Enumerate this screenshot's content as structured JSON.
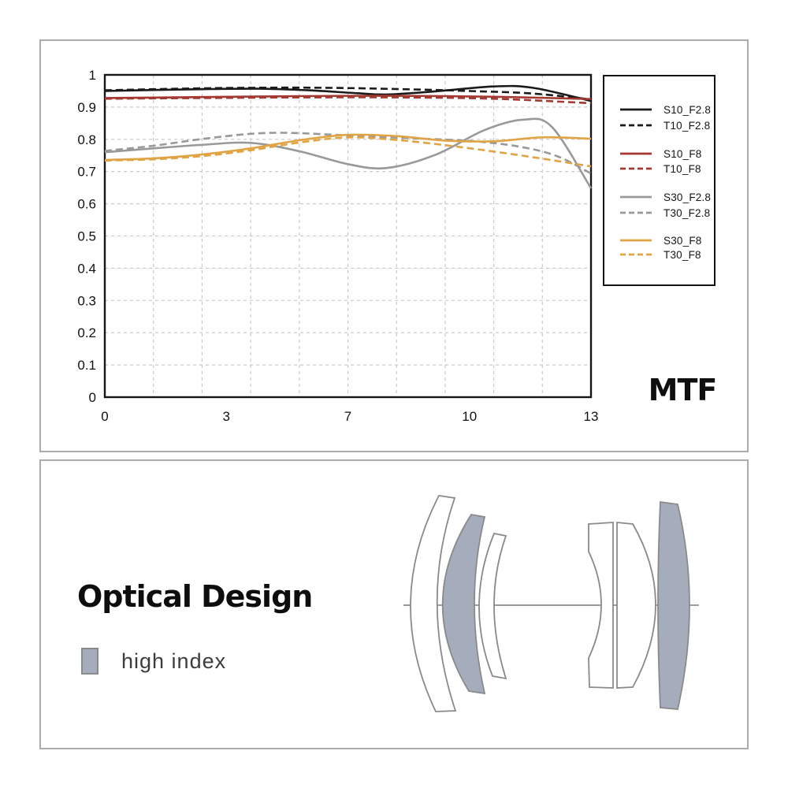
{
  "mtf_panel": {
    "mtf_label": "MTF"
  },
  "optical_panel": {
    "title": "Optical Design",
    "high_index_label": "high index"
  },
  "colors": {
    "series_black": "#1a1a1a",
    "series_red": "#a43932",
    "series_gray": "#999999",
    "series_orange": "#e0a444",
    "high_index_fill": "#a5adbd",
    "lens_outline": "#8a8a8a",
    "panel_border": "#ababab",
    "grid": "#c9c9c9",
    "frame": "#161616"
  },
  "chart_data": {
    "type": "line",
    "title": "MTF",
    "xlabel": "",
    "ylabel": "",
    "ylim": [
      0,
      1
    ],
    "grid": "dashed light-gray; vertical lines every 10% of plot width, horizontal lines every 0.1",
    "legend_position": "outside right, boxed, 4 pairs",
    "x_ticks": [
      {
        "label": "0",
        "f": 0
      },
      {
        "label": "3",
        "f": 0.25
      },
      {
        "label": "7",
        "f": 0.5
      },
      {
        "label": "10",
        "f": 0.75
      },
      {
        "label": "13",
        "f": 1
      }
    ],
    "y_ticks": [
      {
        "label": "0",
        "v": 0
      },
      {
        "label": "0.1",
        "v": 0.1
      },
      {
        "label": "0.2",
        "v": 0.2
      },
      {
        "label": "0.3",
        "v": 0.3
      },
      {
        "label": "0.4",
        "v": 0.4
      },
      {
        "label": "0.5",
        "v": 0.5
      },
      {
        "label": "0.6",
        "v": 0.6
      },
      {
        "label": "0.7",
        "v": 0.7
      },
      {
        "label": "0.8",
        "v": 0.8
      },
      {
        "label": "0.9",
        "v": 0.9
      },
      {
        "label": "1",
        "v": 1
      }
    ],
    "series": [
      {
        "name": "S10_F2.8",
        "color": "#1a1a1a",
        "dash": false,
        "points": [
          [
            0,
            0.95
          ],
          [
            0.1,
            0.953
          ],
          [
            0.22,
            0.956
          ],
          [
            0.32,
            0.957
          ],
          [
            0.42,
            0.952
          ],
          [
            0.52,
            0.943
          ],
          [
            0.58,
            0.939
          ],
          [
            0.68,
            0.949
          ],
          [
            0.8,
            0.964
          ],
          [
            0.88,
            0.96
          ],
          [
            1,
            0.919
          ]
        ]
      },
      {
        "name": "T10_F2.8",
        "color": "#1a1a1a",
        "dash": true,
        "points": [
          [
            0,
            0.952
          ],
          [
            0.15,
            0.957
          ],
          [
            0.3,
            0.96
          ],
          [
            0.45,
            0.96
          ],
          [
            0.6,
            0.956
          ],
          [
            0.75,
            0.95
          ],
          [
            0.88,
            0.942
          ],
          [
            1,
            0.924
          ]
        ]
      },
      {
        "name": "S10_F8",
        "color": "#a43932",
        "dash": false,
        "points": [
          [
            0,
            0.928
          ],
          [
            0.2,
            0.931
          ],
          [
            0.4,
            0.934
          ],
          [
            0.6,
            0.935
          ],
          [
            0.8,
            0.932
          ],
          [
            1,
            0.925
          ]
        ]
      },
      {
        "name": "T10_F8",
        "color": "#a43932",
        "dash": true,
        "points": [
          [
            0,
            0.926
          ],
          [
            0.2,
            0.928
          ],
          [
            0.4,
            0.93
          ],
          [
            0.6,
            0.93
          ],
          [
            0.8,
            0.926
          ],
          [
            1,
            0.912
          ]
        ]
      },
      {
        "name": "S30_F2.8",
        "color": "#999999",
        "dash": false,
        "points": [
          [
            0,
            0.76
          ],
          [
            0.1,
            0.772
          ],
          [
            0.2,
            0.783
          ],
          [
            0.3,
            0.789
          ],
          [
            0.4,
            0.763
          ],
          [
            0.5,
            0.723
          ],
          [
            0.58,
            0.711
          ],
          [
            0.68,
            0.752
          ],
          [
            0.78,
            0.828
          ],
          [
            0.86,
            0.861
          ],
          [
            0.92,
            0.838
          ],
          [
            1,
            0.648
          ]
        ]
      },
      {
        "name": "T30_F2.8",
        "color": "#999999",
        "dash": true,
        "points": [
          [
            0,
            0.764
          ],
          [
            0.1,
            0.78
          ],
          [
            0.2,
            0.801
          ],
          [
            0.3,
            0.817
          ],
          [
            0.38,
            0.82
          ],
          [
            0.5,
            0.812
          ],
          [
            0.62,
            0.804
          ],
          [
            0.75,
            0.795
          ],
          [
            0.85,
            0.778
          ],
          [
            0.93,
            0.748
          ],
          [
            1,
            0.694
          ]
        ]
      },
      {
        "name": "S30_F8",
        "color": "#e0a444",
        "dash": false,
        "points": [
          [
            0,
            0.736
          ],
          [
            0.1,
            0.741
          ],
          [
            0.2,
            0.753
          ],
          [
            0.3,
            0.772
          ],
          [
            0.4,
            0.797
          ],
          [
            0.5,
            0.814
          ],
          [
            0.6,
            0.81
          ],
          [
            0.7,
            0.796
          ],
          [
            0.8,
            0.794
          ],
          [
            0.9,
            0.806
          ],
          [
            1,
            0.802
          ]
        ]
      },
      {
        "name": "T30_F8",
        "color": "#e0a444",
        "dash": true,
        "points": [
          [
            0,
            0.734
          ],
          [
            0.1,
            0.738
          ],
          [
            0.2,
            0.748
          ],
          [
            0.3,
            0.766
          ],
          [
            0.4,
            0.79
          ],
          [
            0.5,
            0.806
          ],
          [
            0.6,
            0.798
          ],
          [
            0.7,
            0.782
          ],
          [
            0.8,
            0.762
          ],
          [
            0.9,
            0.74
          ],
          [
            1,
            0.716
          ]
        ]
      }
    ]
  },
  "lens_diagram": {
    "element_count": 6,
    "high_index_elements": [
      2,
      6
    ]
  }
}
